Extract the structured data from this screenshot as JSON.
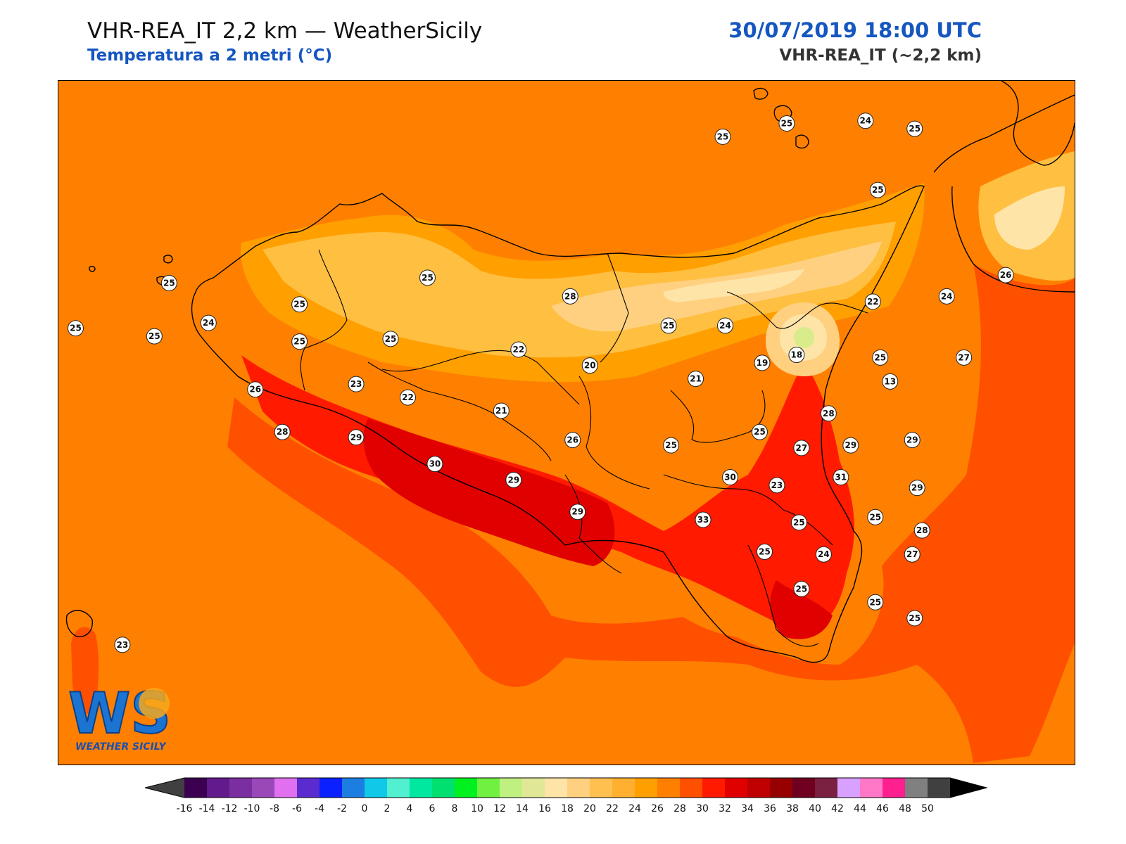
{
  "header": {
    "title_left": "VHR-REA_IT 2,2 km — WeatherSicily",
    "subtitle_left": "Temperatura a 2 metri (°C)",
    "title_right": "30/07/2019 18:00 UTC",
    "subtitle_right": "VHR-REA_IT (~2,2 km)"
  },
  "logo": {
    "letters": "WS",
    "text": "WEATHER SICILY",
    "icon": "weather-sicily-logo"
  },
  "colors": {
    "sea": "#ff8000",
    "warm_land": "#ff5000",
    "hot": "#ff1a00",
    "very_hot": "#e00000",
    "mild": "#ff9f00",
    "cool": "#ffbf40",
    "cooler": "#ffd080",
    "coolest": "#ffe4a8",
    "etna_top": "#d8ec8c"
  },
  "stations": [
    {
      "lon": 15.1,
      "lat": 38.8,
      "value": "25"
    },
    {
      "lon": 14.95,
      "lat": 38.57,
      "value": "25"
    },
    {
      "lon": 14.58,
      "lat": 38.82,
      "value": "25"
    },
    {
      "lon": 14.9,
      "lat": 38.83,
      "value": "24"
    },
    {
      "lon": 14.32,
      "lat": 38.77,
      "value": "25"
    },
    {
      "lon": 15.47,
      "lat": 38.25,
      "value": "26"
    },
    {
      "lon": 15.23,
      "lat": 38.17,
      "value": "24"
    },
    {
      "lon": 14.93,
      "lat": 38.15,
      "value": "22"
    },
    {
      "lon": 12.07,
      "lat": 38.22,
      "value": "25"
    },
    {
      "lon": 13.12,
      "lat": 38.24,
      "value": "25"
    },
    {
      "lon": 13.7,
      "lat": 38.17,
      "value": "28"
    },
    {
      "lon": 12.6,
      "lat": 38.14,
      "value": "25"
    },
    {
      "lon": 12.01,
      "lat": 38.02,
      "value": "25"
    },
    {
      "lon": 11.69,
      "lat": 38.05,
      "value": "25"
    },
    {
      "lon": 12.23,
      "lat": 38.07,
      "value": "24"
    },
    {
      "lon": 12.6,
      "lat": 38.0,
      "value": "25"
    },
    {
      "lon": 12.97,
      "lat": 38.01,
      "value": "25"
    },
    {
      "lon": 13.49,
      "lat": 37.97,
      "value": "22"
    },
    {
      "lon": 14.1,
      "lat": 38.06,
      "value": "25"
    },
    {
      "lon": 14.33,
      "lat": 38.06,
      "value": "24"
    },
    {
      "lon": 14.62,
      "lat": 37.95,
      "value": "18"
    },
    {
      "lon": 14.96,
      "lat": 37.94,
      "value": "25"
    },
    {
      "lon": 15.3,
      "lat": 37.94,
      "value": "27"
    },
    {
      "lon": 14.48,
      "lat": 37.92,
      "value": "19"
    },
    {
      "lon": 13.78,
      "lat": 37.91,
      "value": "20"
    },
    {
      "lon": 14.21,
      "lat": 37.86,
      "value": "21"
    },
    {
      "lon": 15.0,
      "lat": 37.85,
      "value": "13"
    },
    {
      "lon": 12.83,
      "lat": 37.84,
      "value": "23"
    },
    {
      "lon": 12.42,
      "lat": 37.82,
      "value": "26"
    },
    {
      "lon": 13.04,
      "lat": 37.79,
      "value": "22"
    },
    {
      "lon": 13.42,
      "lat": 37.74,
      "value": "21"
    },
    {
      "lon": 14.75,
      "lat": 37.73,
      "value": "28"
    },
    {
      "lon": 12.53,
      "lat": 37.66,
      "value": "28"
    },
    {
      "lon": 12.83,
      "lat": 37.64,
      "value": "29"
    },
    {
      "lon": 13.71,
      "lat": 37.63,
      "value": "26"
    },
    {
      "lon": 14.47,
      "lat": 37.66,
      "value": "25"
    },
    {
      "lon": 14.11,
      "lat": 37.61,
      "value": "25"
    },
    {
      "lon": 14.64,
      "lat": 37.6,
      "value": "27"
    },
    {
      "lon": 14.84,
      "lat": 37.61,
      "value": "29"
    },
    {
      "lon": 15.09,
      "lat": 37.63,
      "value": "29"
    },
    {
      "lon": 13.15,
      "lat": 37.54,
      "value": "30"
    },
    {
      "lon": 13.47,
      "lat": 37.48,
      "value": "29"
    },
    {
      "lon": 14.35,
      "lat": 37.49,
      "value": "30"
    },
    {
      "lon": 14.54,
      "lat": 37.46,
      "value": "23"
    },
    {
      "lon": 14.8,
      "lat": 37.49,
      "value": "31"
    },
    {
      "lon": 15.11,
      "lat": 37.45,
      "value": "29"
    },
    {
      "lon": 13.73,
      "lat": 37.36,
      "value": "29"
    },
    {
      "lon": 14.24,
      "lat": 37.33,
      "value": "33"
    },
    {
      "lon": 14.63,
      "lat": 37.32,
      "value": "25"
    },
    {
      "lon": 14.94,
      "lat": 37.34,
      "value": "25"
    },
    {
      "lon": 15.13,
      "lat": 37.29,
      "value": "28"
    },
    {
      "lon": 14.49,
      "lat": 37.21,
      "value": "25"
    },
    {
      "lon": 14.73,
      "lat": 37.2,
      "value": "24"
    },
    {
      "lon": 15.09,
      "lat": 37.2,
      "value": "27"
    },
    {
      "lon": 14.64,
      "lat": 37.07,
      "value": "25"
    },
    {
      "lon": 14.94,
      "lat": 37.02,
      "value": "25"
    },
    {
      "lon": 15.1,
      "lat": 36.96,
      "value": "25"
    },
    {
      "lon": 11.88,
      "lat": 36.86,
      "value": "23"
    }
  ],
  "colorbar": {
    "ticks": [
      "-16",
      "-14",
      "-12",
      "-10",
      "-8",
      "-6",
      "-4",
      "-2",
      "0",
      "2",
      "4",
      "6",
      "8",
      "10",
      "12",
      "14",
      "16",
      "18",
      "20",
      "22",
      "24",
      "26",
      "28",
      "30",
      "32",
      "34",
      "36",
      "38",
      "40",
      "42",
      "44",
      "46",
      "48",
      "50"
    ],
    "colors": [
      "#3b0050",
      "#621a8c",
      "#7a2ea0",
      "#9a48b8",
      "#e070f0",
      "#5a2ccf",
      "#0a20ff",
      "#1c7ee0",
      "#10c8e8",
      "#50f0d0",
      "#00e8a0",
      "#00e070",
      "#00f020",
      "#70f040",
      "#c0f080",
      "#e0e898",
      "#ffe4a8",
      "#ffd080",
      "#ffc050",
      "#ffb030",
      "#ff9f00",
      "#ff8000",
      "#ff5000",
      "#ff1a00",
      "#e00000",
      "#c00000",
      "#960000",
      "#700020",
      "#7a2040",
      "#d8a0ff",
      "#ff78c8",
      "#ff2090",
      "#808080",
      "#404040"
    ],
    "under_color": "#404040",
    "over_color": "#000000"
  }
}
